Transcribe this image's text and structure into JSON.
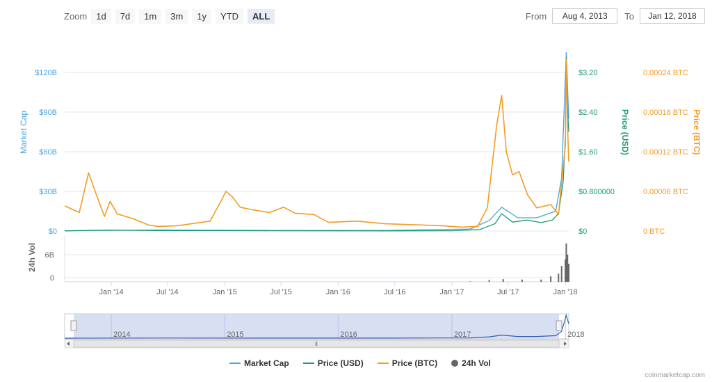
{
  "toolbar": {
    "zoom_label": "Zoom",
    "zoom_options": [
      "1d",
      "7d",
      "1m",
      "3m",
      "1y",
      "YTD",
      "ALL"
    ],
    "active_zoom": "ALL",
    "from_label": "From",
    "from_value": "Aug 4, 2013",
    "to_label": "To",
    "to_value": "Jan 12, 2018"
  },
  "colors": {
    "market_cap": "#4aa4dc",
    "price_usd": "#1a9c74",
    "price_btc": "#f49b23",
    "volume": "#666666"
  },
  "chart_data": {
    "type": "line",
    "x_range": [
      "2013-08-04",
      "2018-01-12"
    ],
    "x_ticks": [
      "Jan '14",
      "Jul '14",
      "Jan '15",
      "Jul '15",
      "Jan '16",
      "Jul '16",
      "Jan '17",
      "Jul '17",
      "Jan '18"
    ],
    "y_axes": {
      "market_cap": {
        "label": "Market Cap",
        "ticks": [
          "$0",
          "$30B",
          "$60B",
          "$90B",
          "$120B"
        ]
      },
      "price_usd": {
        "label": "Price (USD)",
        "ticks": [
          "$0",
          "$0.800000",
          "$1.60",
          "$2.40",
          "$3.20"
        ],
        "range": [
          0,
          3.2
        ]
      },
      "price_btc": {
        "label": "Price (BTC)",
        "ticks": [
          "0 BTC",
          "0.00006 BTC",
          "0.00012 BTC",
          "0.00018 BTC",
          "0.00024 BTC"
        ],
        "range": [
          0,
          0.00024
        ]
      },
      "volume": {
        "label": "24h Vol",
        "ticks": [
          "0",
          "6B"
        ],
        "range": [
          0,
          6
        ]
      }
    },
    "series": [
      {
        "name": "Market Cap",
        "x": [
          "2013-08-04",
          "2014-06-01",
          "2015-06-01",
          "2016-06-01",
          "2017-03-01",
          "2017-05-01",
          "2017-06-10",
          "2017-08-01",
          "2017-10-01",
          "2017-12-01",
          "2017-12-20",
          "2018-01-04",
          "2018-01-12"
        ],
        "values": [
          0.2,
          0.8,
          0.5,
          0.5,
          1.5,
          8,
          18,
          10,
          10,
          15,
          40,
          135,
          85
        ]
      },
      {
        "name": "Price (USD)",
        "x": [
          "2013-08-04",
          "2013-12-20",
          "2014-06-01",
          "2015-01-01",
          "2015-06-01",
          "2016-01-01",
          "2016-06-01",
          "2017-01-01",
          "2017-04-01",
          "2017-05-20",
          "2017-06-10",
          "2017-07-15",
          "2017-09-01",
          "2017-10-15",
          "2017-11-20",
          "2017-12-10",
          "2017-12-25",
          "2018-01-01",
          "2018-01-04",
          "2018-01-07",
          "2018-01-12"
        ],
        "values": [
          0.003,
          0.02,
          0.01,
          0.008,
          0.006,
          0.004,
          0.003,
          0.006,
          0.03,
          0.15,
          0.35,
          0.18,
          0.22,
          0.17,
          0.22,
          0.35,
          1.0,
          1.9,
          3.5,
          2.6,
          2.0
        ]
      },
      {
        "name": "Price (BTC)",
        "x": [
          "2013-08-04",
          "2013-09-20",
          "2013-10-20",
          "2013-11-10",
          "2013-12-10",
          "2013-12-28",
          "2014-01-20",
          "2014-03-15",
          "2014-05-01",
          "2014-06-01",
          "2014-08-01",
          "2014-11-15",
          "2014-12-20",
          "2015-01-05",
          "2015-01-25",
          "2015-02-20",
          "2015-04-01",
          "2015-05-25",
          "2015-07-10",
          "2015-08-15",
          "2015-10-15",
          "2015-12-01",
          "2016-03-01",
          "2016-06-01",
          "2016-10-01",
          "2016-12-01",
          "2017-02-01",
          "2017-03-25",
          "2017-04-25",
          "2017-05-25",
          "2017-06-10",
          "2017-06-25",
          "2017-07-15",
          "2017-08-05",
          "2017-09-01",
          "2017-10-01",
          "2017-11-15",
          "2017-12-10",
          "2018-01-01",
          "2018-01-04",
          "2018-01-08",
          "2018-01-12"
        ],
        "values": [
          3.8e-05,
          2.8e-05,
          8.8e-05,
          6e-05,
          2.2e-05,
          4.5e-05,
          2.6e-05,
          1.8e-05,
          9e-06,
          7e-06,
          8e-06,
          1.5e-05,
          4.5e-05,
          6e-05,
          5.2e-05,
          3.6e-05,
          3.2e-05,
          2.8e-05,
          3.6e-05,
          2.7e-05,
          2.5e-05,
          1.3e-05,
          1.5e-05,
          1.1e-05,
          9e-06,
          8e-06,
          6e-06,
          7e-06,
          3.5e-05,
          0.00016,
          0.000205,
          0.00012,
          8.5e-05,
          9e-05,
          5.5e-05,
          3.5e-05,
          4e-05,
          2.5e-05,
          0.00013,
          0.00026,
          0.00016,
          0.000105
        ]
      },
      {
        "name": "24h Vol",
        "x": [
          "2017-03-01",
          "2017-05-01",
          "2017-06-15",
          "2017-08-15",
          "2017-10-15",
          "2017-11-15",
          "2017-12-10",
          "2017-12-20",
          "2018-01-01",
          "2018-01-04",
          "2018-01-08",
          "2018-01-12"
        ],
        "values": [
          0.1,
          0.4,
          0.6,
          0.5,
          0.5,
          1.2,
          1.8,
          3.5,
          5.0,
          8.5,
          6.0,
          4.0
        ]
      }
    ]
  },
  "navigator": {
    "year_labels": [
      "2014",
      "2015",
      "2016",
      "2017",
      "2018"
    ],
    "scroll_grip": "⦀"
  },
  "legend": [
    {
      "name": "Market Cap",
      "kind": "line"
    },
    {
      "name": "Price (USD)",
      "kind": "line"
    },
    {
      "name": "Price (BTC)",
      "kind": "line"
    },
    {
      "name": "24h Vol",
      "kind": "dot"
    }
  ],
  "credit": "coinmarketcap.com"
}
